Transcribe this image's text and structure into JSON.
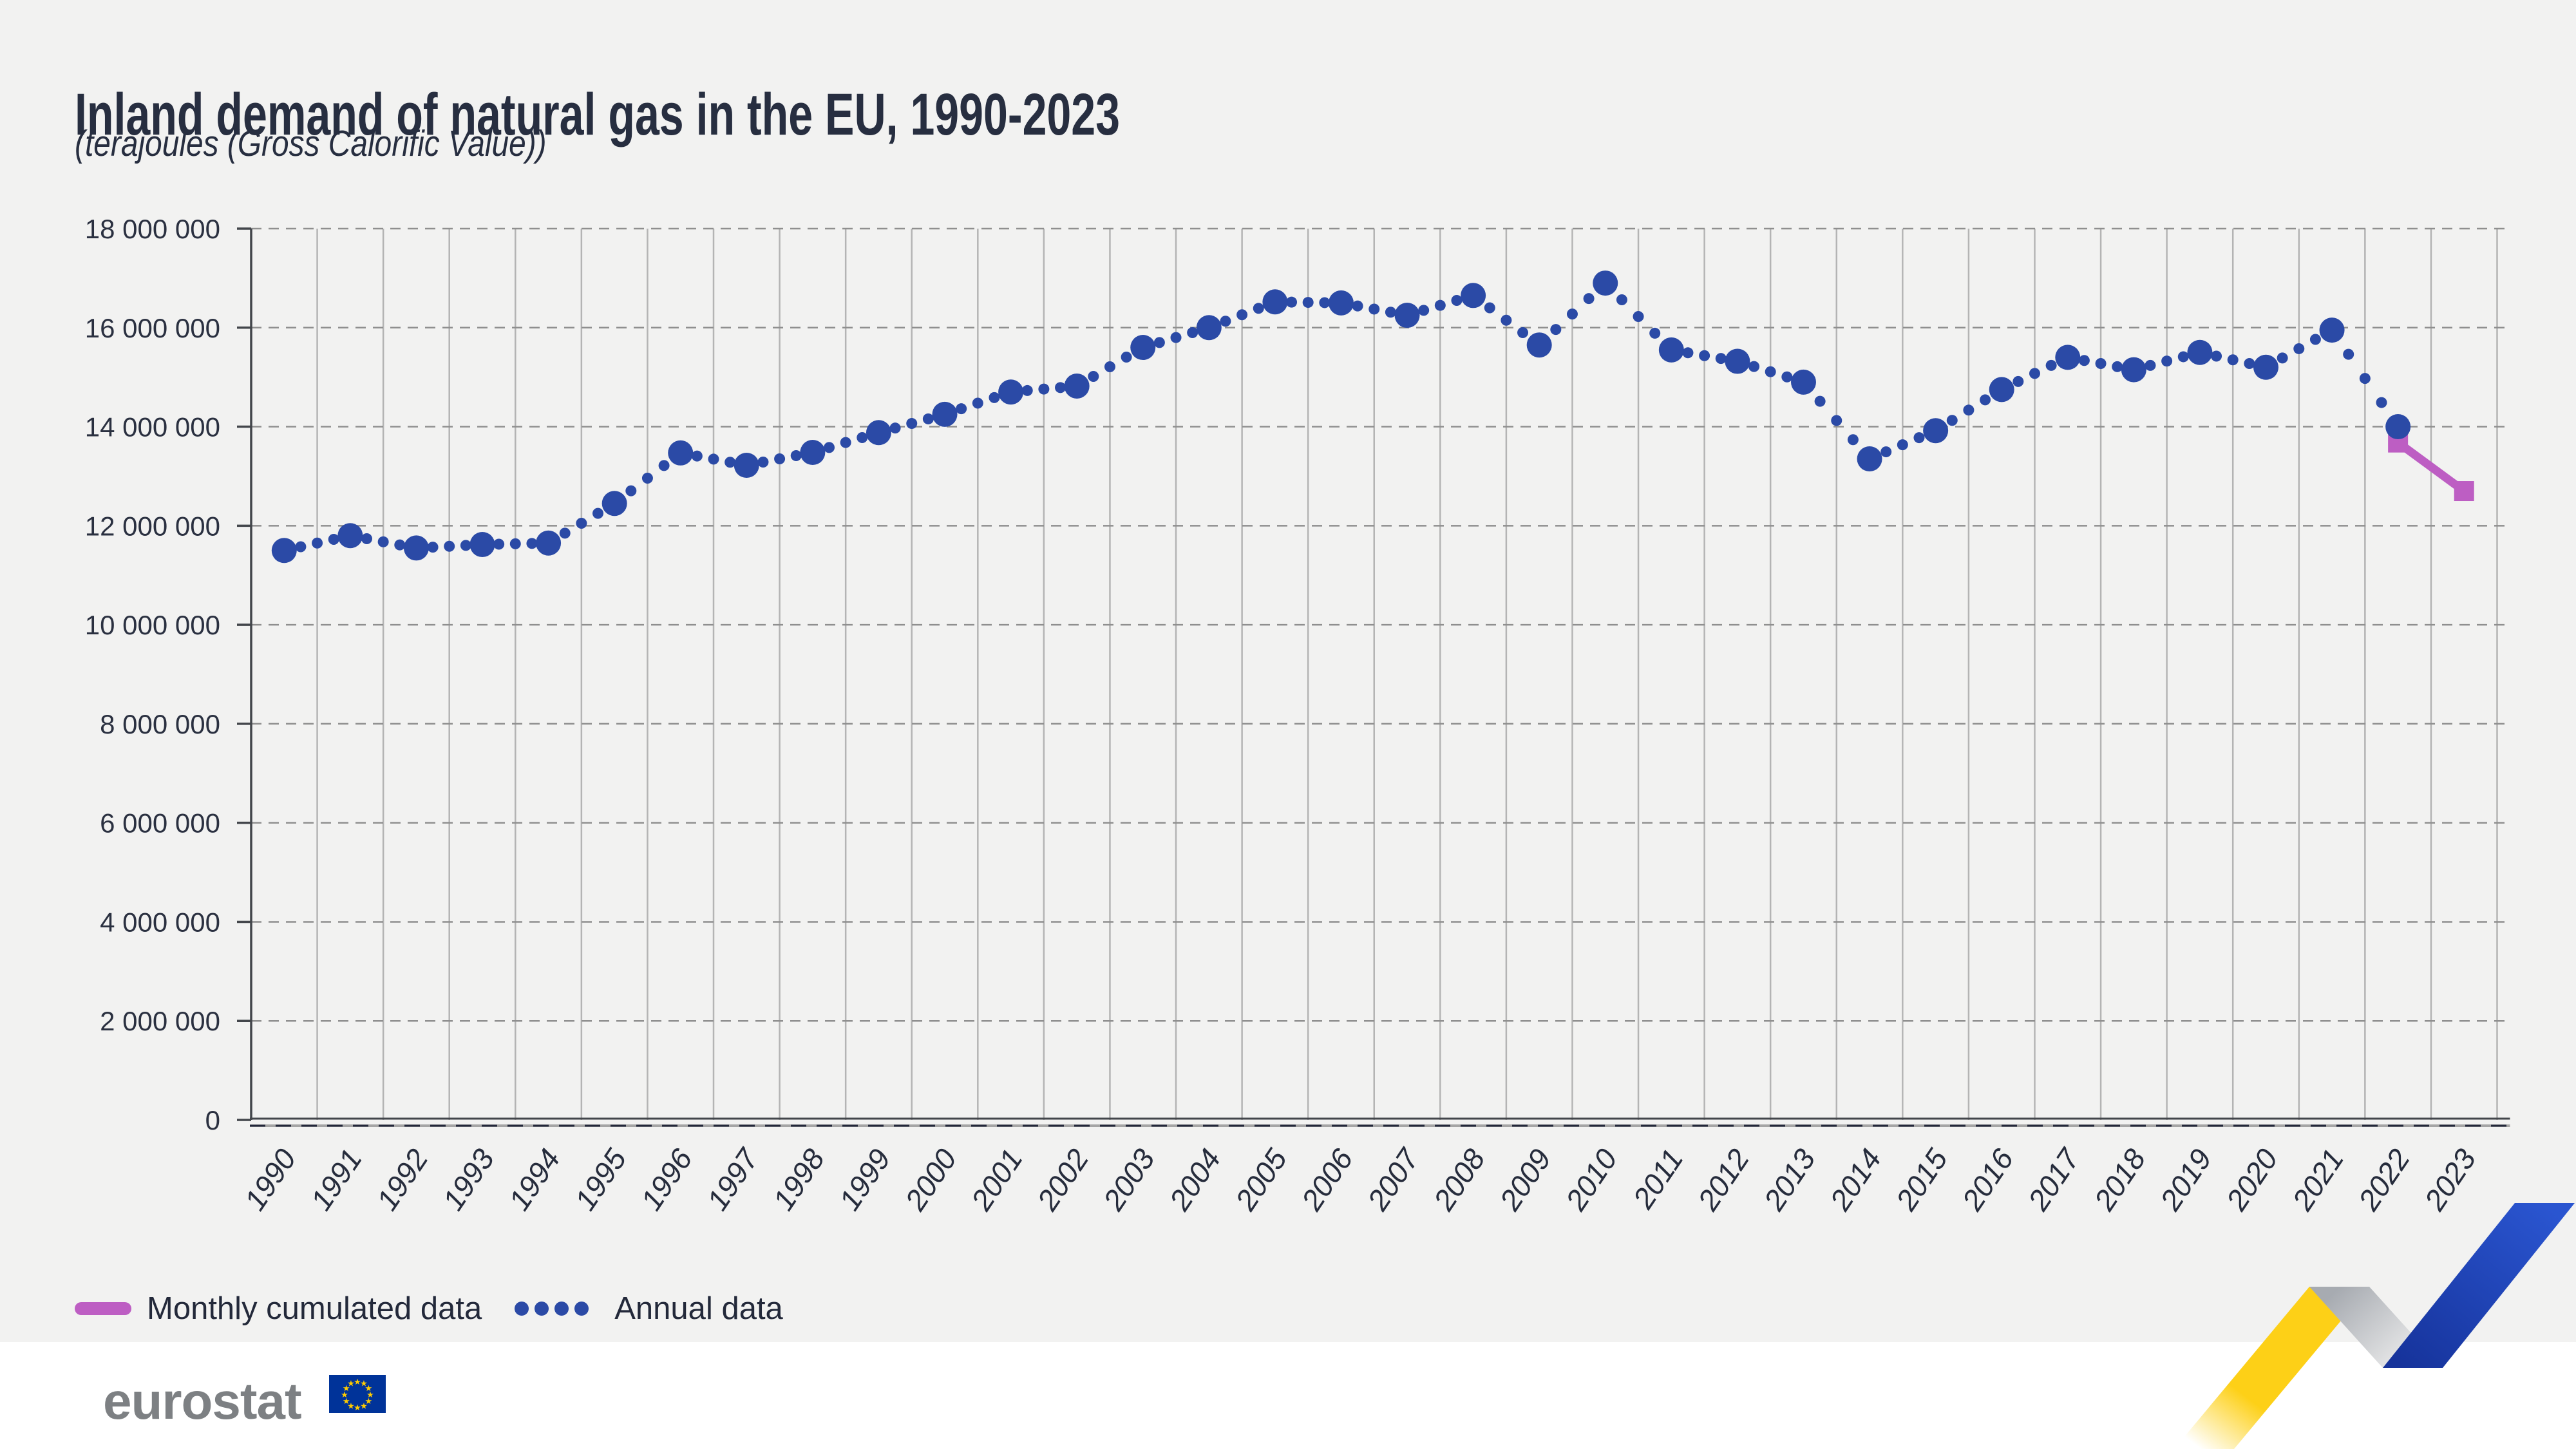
{
  "header": {
    "title": "Inland demand of natural gas in the EU, 1990-2023",
    "subtitle": "(terajoules (Gross Calorific Value))"
  },
  "legend": {
    "monthly_label": "Monthly cumulated data",
    "annual_label": "Annual data"
  },
  "footer": {
    "logo_text": "eurostat"
  },
  "colors": {
    "annual_series": "#2b4aa6",
    "monthly_series": "#bd5ec3",
    "background": "#f2f2f1",
    "footer_background": "#ffffff",
    "text_dark": "#272e40",
    "vertical_gridline": "#b4b4b4",
    "horizontal_gridline": "#8f8f8f",
    "axis": "#43464b",
    "logo_gray": "#7d8083",
    "eu_flag_blue": "#003399",
    "eu_flag_stars": "#ffcc00",
    "ribbon_yellow": "#fdd017",
    "ribbon_gray": "#a7abb1",
    "ribbon_blue": "#2a55d0"
  },
  "chart_data": {
    "type": "scatter",
    "title": "Inland demand of natural gas in the EU, 1990-2023",
    "subtitle": "(terajoules (Gross Calorific Value))",
    "xlabel": "",
    "ylabel": "terajoules (Gross Calorific Value)",
    "ylim": [
      0,
      18000000
    ],
    "grid": {
      "vertical": "solid",
      "horizontal": "dashed"
    },
    "legend_position": "bottom-left",
    "x": [
      "1990",
      "1991",
      "1992",
      "1993",
      "1994",
      "1995",
      "1996",
      "1997",
      "1998",
      "1999",
      "2000",
      "2001",
      "2002",
      "2003",
      "2004",
      "2005",
      "2006",
      "2007",
      "2008",
      "2009",
      "2010",
      "2011",
      "2012",
      "2013",
      "2014",
      "2015",
      "2016",
      "2017",
      "2018",
      "2019",
      "2020",
      "2021",
      "2022",
      "2023"
    ],
    "y_ticks": [
      {
        "value": 0,
        "label": "0"
      },
      {
        "value": 2000000,
        "label": "2 000 000"
      },
      {
        "value": 4000000,
        "label": "4 000 000"
      },
      {
        "value": 6000000,
        "label": "6 000 000"
      },
      {
        "value": 8000000,
        "label": "8 000 000"
      },
      {
        "value": 10000000,
        "label": "10 000 000"
      },
      {
        "value": 12000000,
        "label": "12 000 000"
      },
      {
        "value": 14000000,
        "label": "14 000 000"
      },
      {
        "value": 16000000,
        "label": "16 000 000"
      },
      {
        "value": 18000000,
        "label": "18 000 000"
      }
    ],
    "series": [
      {
        "name": "Annual data",
        "style": "dotted-line-with-point-markers",
        "marker": "circle",
        "color": "#2b4aa6",
        "values": [
          11500000,
          11800000,
          11550000,
          11620000,
          11650000,
          12450000,
          13470000,
          13220000,
          13480000,
          13880000,
          14250000,
          14700000,
          14820000,
          15600000,
          16000000,
          16520000,
          16500000,
          16250000,
          16650000,
          15650000,
          16900000,
          15550000,
          15320000,
          14900000,
          13350000,
          13920000,
          14750000,
          15400000,
          15150000,
          15500000,
          15200000,
          15950000,
          14000000,
          null
        ]
      },
      {
        "name": "Monthly cumulated data",
        "style": "solid-line-with-square-markers",
        "marker": "square",
        "color": "#bd5ec3",
        "points": [
          {
            "x": "2022",
            "value": 13680000
          },
          {
            "x": "2023",
            "value": 12700000
          }
        ]
      }
    ]
  }
}
